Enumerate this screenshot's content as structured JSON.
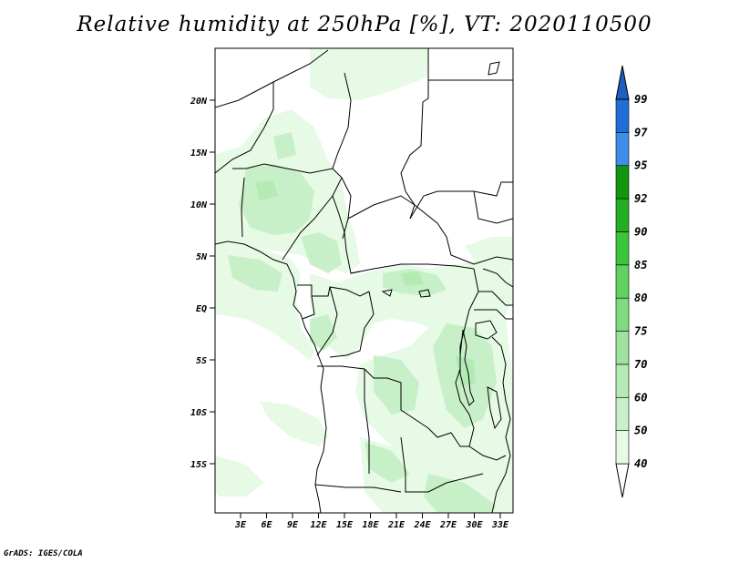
{
  "title": "Relative humidity at 250hPa [%], VT: 2020110500",
  "credit": "GrADS: IGES/COLA",
  "map": {
    "lat_labels": [
      "20N",
      "15N",
      "10N",
      "5N",
      "EQ",
      "5S",
      "10S",
      "15S"
    ],
    "lon_labels": [
      "3E",
      "6E",
      "9E",
      "12E",
      "15E",
      "18E",
      "21E",
      "24E",
      "27E",
      "30E",
      "33E"
    ]
  },
  "colorbar": {
    "levels": [
      "40",
      "50",
      "60",
      "70",
      "75",
      "80",
      "85",
      "90",
      "92",
      "95",
      "97",
      "99"
    ],
    "colors": [
      "#ffffff",
      "#e6fae6",
      "#c8f0c8",
      "#b4ebb4",
      "#9ee29e",
      "#7fdb7f",
      "#5fd25f",
      "#3cc43c",
      "#22b022",
      "#10960f",
      "#3f8ee6",
      "#1f6fd6",
      "#1f5fbf"
    ]
  }
}
